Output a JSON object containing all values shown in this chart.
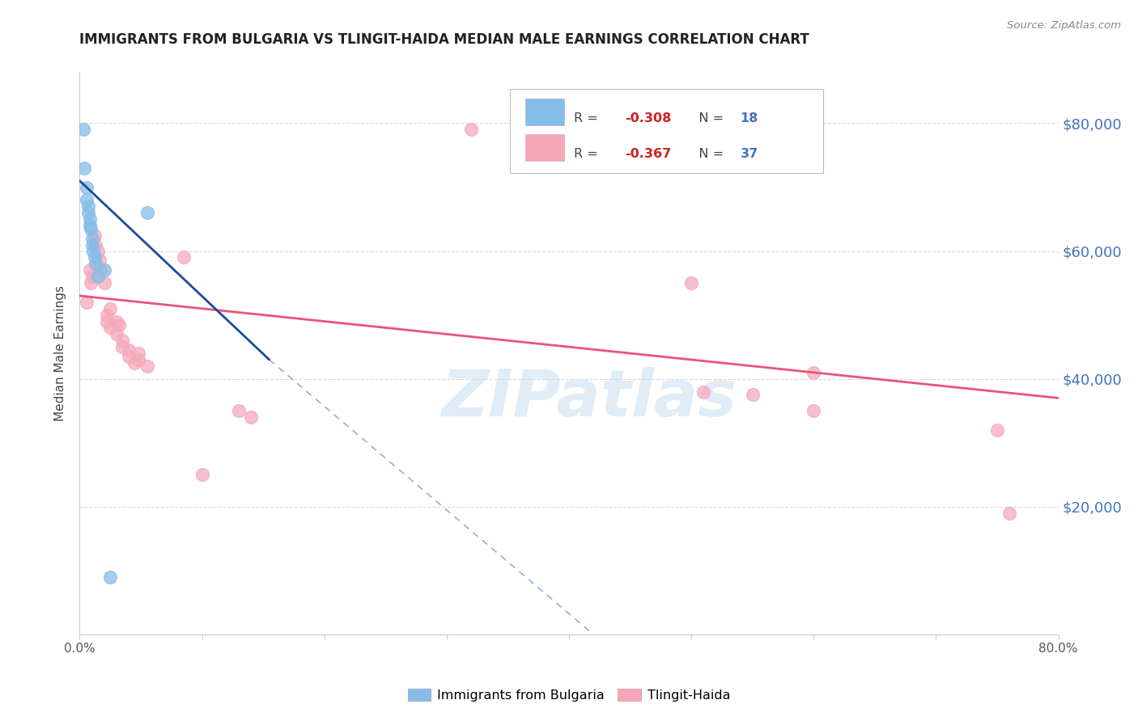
{
  "title": "IMMIGRANTS FROM BULGARIA VS TLINGIT-HAIDA MEDIAN MALE EARNINGS CORRELATION CHART",
  "source": "Source: ZipAtlas.com",
  "ylabel": "Median Male Earnings",
  "y_ticks": [
    20000,
    40000,
    60000,
    80000
  ],
  "y_tick_labels": [
    "$20,000",
    "$40,000",
    "$60,000",
    "$80,000"
  ],
  "xlim": [
    0.0,
    0.8
  ],
  "ylim": [
    0,
    88000
  ],
  "legend_r_blue": "-0.308",
  "legend_n_blue": "18",
  "legend_r_pink": "-0.367",
  "legend_n_pink": "37",
  "watermark": "ZIPatlas",
  "blue_scatter": [
    [
      0.003,
      79000
    ],
    [
      0.004,
      73000
    ],
    [
      0.006,
      70000
    ],
    [
      0.006,
      68000
    ],
    [
      0.007,
      67000
    ],
    [
      0.007,
      66000
    ],
    [
      0.008,
      65000
    ],
    [
      0.008,
      64000
    ],
    [
      0.009,
      63500
    ],
    [
      0.01,
      62000
    ],
    [
      0.01,
      61000
    ],
    [
      0.011,
      60000
    ],
    [
      0.012,
      59000
    ],
    [
      0.013,
      58000
    ],
    [
      0.02,
      57000
    ],
    [
      0.055,
      66000
    ],
    [
      0.025,
      9000
    ],
    [
      0.015,
      56000
    ]
  ],
  "pink_scatter": [
    [
      0.006,
      52000
    ],
    [
      0.008,
      57000
    ],
    [
      0.009,
      55000
    ],
    [
      0.01,
      56000
    ],
    [
      0.012,
      62500
    ],
    [
      0.013,
      61000
    ],
    [
      0.015,
      60000
    ],
    [
      0.016,
      58500
    ],
    [
      0.017,
      57000
    ],
    [
      0.02,
      55000
    ],
    [
      0.022,
      50000
    ],
    [
      0.022,
      49000
    ],
    [
      0.025,
      51000
    ],
    [
      0.025,
      48000
    ],
    [
      0.03,
      49000
    ],
    [
      0.03,
      47000
    ],
    [
      0.032,
      48500
    ],
    [
      0.035,
      46000
    ],
    [
      0.035,
      45000
    ],
    [
      0.04,
      44500
    ],
    [
      0.04,
      43500
    ],
    [
      0.045,
      42500
    ],
    [
      0.048,
      44000
    ],
    [
      0.048,
      43000
    ],
    [
      0.055,
      42000
    ],
    [
      0.085,
      59000
    ],
    [
      0.1,
      25000
    ],
    [
      0.13,
      35000
    ],
    [
      0.14,
      34000
    ],
    [
      0.32,
      79000
    ],
    [
      0.5,
      55000
    ],
    [
      0.51,
      38000
    ],
    [
      0.55,
      37500
    ],
    [
      0.6,
      41000
    ],
    [
      0.6,
      35000
    ],
    [
      0.75,
      32000
    ],
    [
      0.76,
      19000
    ]
  ],
  "blue_line_x": [
    0.0,
    0.155
  ],
  "blue_line_y": [
    71000,
    43000
  ],
  "blue_dashed_line_x": [
    0.155,
    0.42
  ],
  "blue_dashed_line_y": [
    43000,
    0
  ],
  "pink_line_x": [
    0.0,
    0.8
  ],
  "pink_line_y": [
    53000,
    37000
  ],
  "blue_dot_size": 130,
  "pink_dot_size": 130,
  "blue_color": "#85bde8",
  "pink_color": "#f5a8bb",
  "blue_edge_color": "#85bde8",
  "pink_edge_color": "#f5a8bb",
  "blue_line_color": "#1a4a9e",
  "pink_line_color": "#e85577",
  "background_color": "#ffffff",
  "grid_color": "#d8d8d8",
  "watermark_color": "#cce0f0",
  "title_color": "#222222",
  "source_color": "#888888",
  "right_axis_color": "#4472c4"
}
